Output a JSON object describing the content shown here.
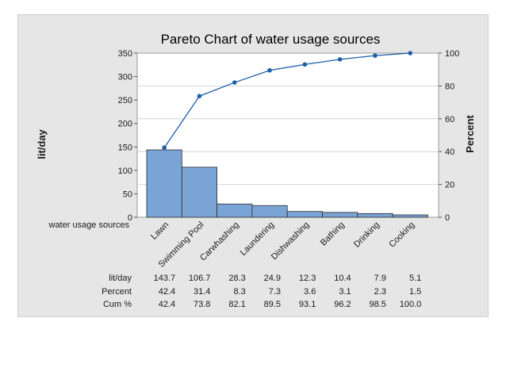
{
  "chart_data": {
    "type": "bar",
    "title": "Pareto Chart of water usage sources",
    "xlabel": "water usage sources",
    "ylabel": "lit/day",
    "y2label": "Percent",
    "categories": [
      "Lawn",
      "Swimming Pool",
      "Carwhashing",
      "Laundering",
      "Dishwashing",
      "Bathing",
      "Drinking",
      "Cooking"
    ],
    "series": [
      {
        "name": "lit/day",
        "values": [
          143.7,
          106.7,
          28.3,
          24.9,
          12.3,
          10.4,
          7.9,
          5.1
        ]
      }
    ],
    "cumulative_percent_line": [
      42.4,
      73.8,
      82.1,
      89.5,
      93.1,
      96.2,
      98.5,
      100.0
    ],
    "ylim": [
      0,
      350
    ],
    "yticks": [
      0,
      50,
      100,
      150,
      200,
      250,
      300,
      350
    ],
    "y2lim": [
      0,
      100
    ],
    "y2ticks": [
      0,
      20,
      40,
      60,
      80,
      100
    ],
    "grid": true,
    "bar_color": "#7ba4d6",
    "line_color": "#1f5fa8",
    "table": {
      "rows": [
        {
          "label": "lit/day",
          "values": [
            "143.7",
            "106.7",
            "28.3",
            "24.9",
            "12.3",
            "10.4",
            "7.9",
            "5.1"
          ]
        },
        {
          "label": "Percent",
          "values": [
            "42.4",
            "31.4",
            "8.3",
            "7.3",
            "3.6",
            "3.1",
            "2.3",
            "1.5"
          ]
        },
        {
          "label": "Cum %",
          "values": [
            "42.4",
            "73.8",
            "82.1",
            "89.5",
            "93.1",
            "96.2",
            "98.5",
            "100.0"
          ]
        }
      ]
    }
  }
}
